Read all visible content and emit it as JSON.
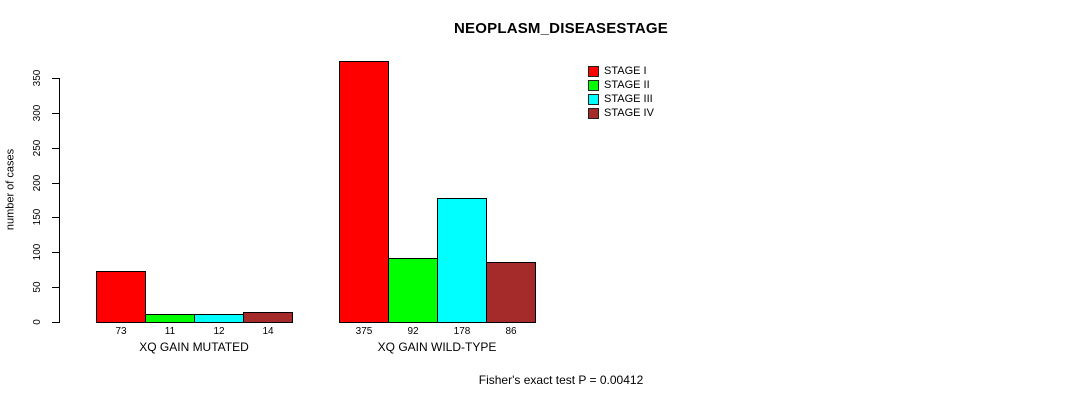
{
  "title": "NEOPLASM_DISEASESTAGE",
  "y_axis": {
    "label": "number of cases",
    "ticks": [
      0,
      50,
      100,
      150,
      200,
      250,
      300,
      350
    ]
  },
  "legend": {
    "items": [
      {
        "label": "STAGE I",
        "color": "#FF0000"
      },
      {
        "label": "STAGE II",
        "color": "#00FF00"
      },
      {
        "label": "STAGE III",
        "color": "#00FFFF"
      },
      {
        "label": "STAGE IV",
        "color": "#A52A2A"
      }
    ]
  },
  "footer": "Fisher's exact test P = 0.00412",
  "chart_data": {
    "type": "bar",
    "title": "NEOPLASM_DISEASESTAGE",
    "xlabel": "",
    "ylabel": "number of cases",
    "ylim": [
      0,
      350
    ],
    "yticks": [
      0,
      50,
      100,
      150,
      200,
      250,
      300,
      350
    ],
    "grid": false,
    "legend_position": "top-right",
    "categories": [
      "XQ GAIN MUTATED",
      "XQ GAIN WILD-TYPE"
    ],
    "series": [
      {
        "name": "STAGE I",
        "color": "#FF0000",
        "values": [
          73,
          375
        ]
      },
      {
        "name": "STAGE II",
        "color": "#00FF00",
        "values": [
          11,
          92
        ]
      },
      {
        "name": "STAGE III",
        "color": "#00FFFF",
        "values": [
          12,
          178
        ]
      },
      {
        "name": "STAGE IV",
        "color": "#A52A2A",
        "values": [
          14,
          86
        ]
      }
    ],
    "bar_value_labels": [
      [
        73,
        11,
        12,
        14
      ],
      [
        375,
        92,
        178,
        86
      ]
    ],
    "annotation": "Fisher's exact test P = 0.00412"
  }
}
